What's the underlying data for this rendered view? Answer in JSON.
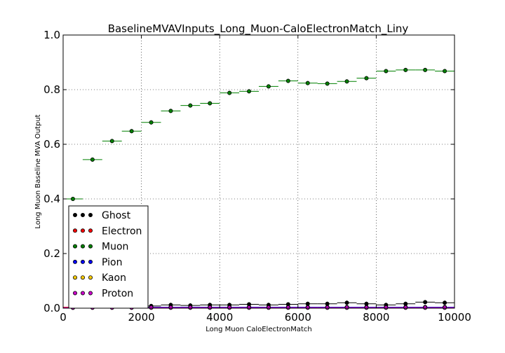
{
  "chart_data": {
    "type": "scatter",
    "title": "BaselineMVAVInputs_Long_Muon-CaloElectronMatch_Liny",
    "xlabel": "Long Muon CaloElectronMatch",
    "ylabel": "Long Muon Baseline MVA Output",
    "xlim": [
      0,
      10000
    ],
    "ylim": [
      0,
      1.0
    ],
    "grid": true,
    "legend_position": "bottom-left",
    "x_ticks": [
      "0",
      "2000",
      "4000",
      "6000",
      "8000",
      "10000"
    ],
    "y_ticks": [
      "0.0",
      "0.2",
      "0.4",
      "0.6",
      "0.8",
      "1.0"
    ],
    "bin_width": 500,
    "x": [
      250,
      750,
      1250,
      1750,
      2250,
      2750,
      3250,
      3750,
      4250,
      4750,
      5250,
      5750,
      6250,
      6750,
      7250,
      7750,
      8250,
      8750,
      9250,
      9750
    ],
    "series": [
      {
        "name": "Ghost",
        "color": "#000000",
        "values": [
          0.002,
          0.01,
          0.008,
          0.01,
          0.008,
          0.012,
          0.01,
          0.012,
          0.012,
          0.014,
          0.012,
          0.014,
          0.016,
          0.016,
          0.02,
          0.016,
          0.012,
          0.016,
          0.022,
          0.02
        ]
      },
      {
        "name": "Electron",
        "color": "#ff0000",
        "values": [
          0.004,
          0.004,
          0.004,
          0.004,
          0.004,
          0.004,
          0.004,
          0.004,
          0.004,
          0.004,
          0.004,
          0.004,
          0.004,
          0.004,
          0.004,
          0.004,
          0.004,
          0.004,
          0.004,
          0.004
        ]
      },
      {
        "name": "Muon",
        "color": "#008000",
        "values": [
          0.4,
          0.544,
          0.612,
          0.648,
          0.68,
          0.722,
          0.742,
          0.75,
          0.788,
          0.794,
          0.812,
          0.832,
          0.824,
          0.822,
          0.83,
          0.842,
          0.868,
          0.872,
          0.872,
          0.868
        ]
      },
      {
        "name": "Pion",
        "color": "#0000ff",
        "values": [
          0.002,
          0.004,
          0.004,
          0.004,
          0.004,
          0.004,
          0.004,
          0.004,
          0.004,
          0.004,
          0.004,
          0.004,
          0.004,
          0.004,
          0.004,
          0.004,
          0.004,
          0.004,
          0.004,
          0.004
        ]
      },
      {
        "name": "Kaon",
        "color": "#ffcc00",
        "values": [
          0.002,
          0.002,
          0.002,
          0.002,
          0.002,
          0.002,
          0.002,
          0.002,
          0.002,
          0.002,
          0.002,
          0.002,
          0.002,
          0.002,
          0.002,
          0.002,
          0.002,
          0.002,
          0.002,
          0.002
        ]
      },
      {
        "name": "Proton",
        "color": "#cc00cc",
        "values": [
          0.002,
          0.002,
          0.002,
          0.002,
          0.002,
          0.002,
          0.002,
          0.002,
          0.002,
          0.002,
          0.002,
          0.002,
          0.002,
          0.002,
          0.002,
          0.002,
          0.002,
          0.002,
          0.002,
          0.002
        ]
      }
    ]
  }
}
